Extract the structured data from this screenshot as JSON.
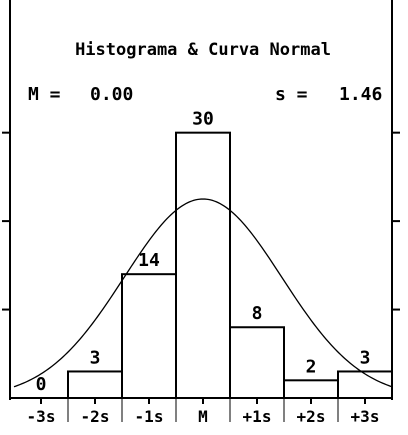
{
  "chart_data": {
    "type": "bar",
    "title": "Histograma & Curva Normal",
    "stats": {
      "mean_label": "M =",
      "mean_value": "0.00",
      "sd_label": "s =",
      "sd_value": "1.46"
    },
    "categories": [
      "-3s",
      "-2s",
      "-1s",
      "M",
      "+1s",
      "+2s",
      "+3s"
    ],
    "bins": [
      {
        "from": -3.5,
        "to": -2.5,
        "value": 0,
        "label": "0"
      },
      {
        "from": -2.5,
        "to": -1.5,
        "value": 3,
        "label": "3"
      },
      {
        "from": -1.5,
        "to": -0.5,
        "value": 14,
        "label": "14"
      },
      {
        "from": -0.5,
        "to": 0.5,
        "value": 30,
        "label": "30"
      },
      {
        "from": 0.5,
        "to": 1.5,
        "value": 8,
        "label": "8"
      },
      {
        "from": 1.5,
        "to": 2.5,
        "value": 2,
        "label": "2"
      },
      {
        "from": 2.5,
        "to": 3.5,
        "value": 3,
        "label": "3"
      }
    ],
    "curve": {
      "type": "normal",
      "mean": 0,
      "peak": 22.5
    },
    "xlim": [
      -3.5,
      3.5
    ],
    "ylim": [
      0,
      45
    ],
    "yticks": [
      10,
      20,
      30
    ]
  }
}
